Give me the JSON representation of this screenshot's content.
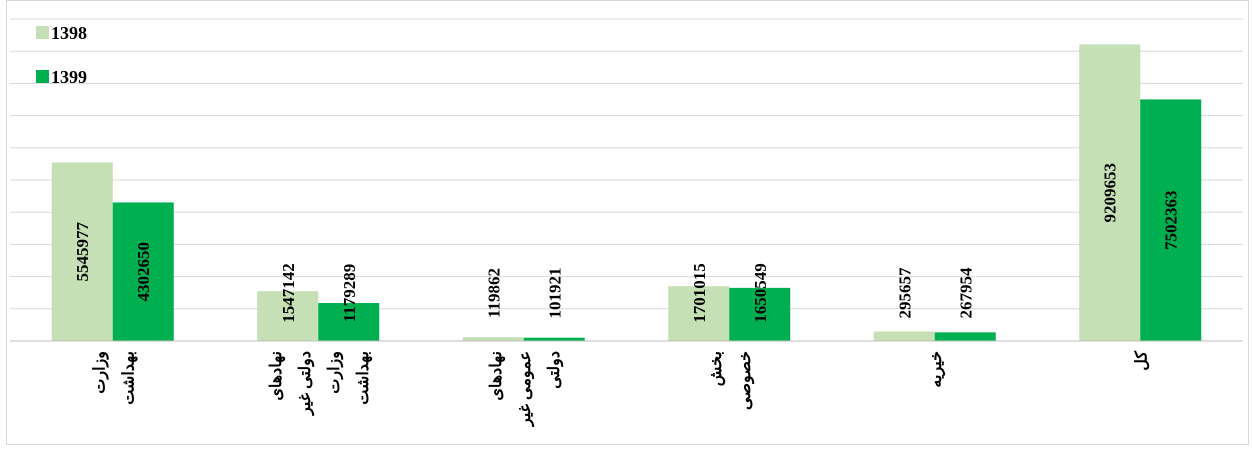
{
  "chart_data": {
    "type": "bar",
    "title": "",
    "xlabel": "",
    "ylabel": "",
    "ylim": [
      0,
      10000000
    ],
    "gridlines": true,
    "legend_position": "top-left",
    "categories": [
      [
        "وزارت",
        "بهداشت"
      ],
      [
        "نهادهای",
        "دولتی غیر",
        "وزارت",
        "بهداشت"
      ],
      [
        "نهادهای",
        "عمومی غیر",
        "دولتی"
      ],
      [
        "بخش",
        "خصوصی"
      ],
      [
        "خیریه"
      ],
      [
        "کل"
      ]
    ],
    "series": [
      {
        "name": "1398",
        "color": "#c5e0b4",
        "values": [
          5545977,
          1547142,
          119862,
          1701015,
          295657,
          9209653
        ]
      },
      {
        "name": "1399",
        "color": "#00b050",
        "values": [
          4302650,
          1179289,
          101921,
          1650549,
          267954,
          7502363
        ]
      }
    ]
  }
}
